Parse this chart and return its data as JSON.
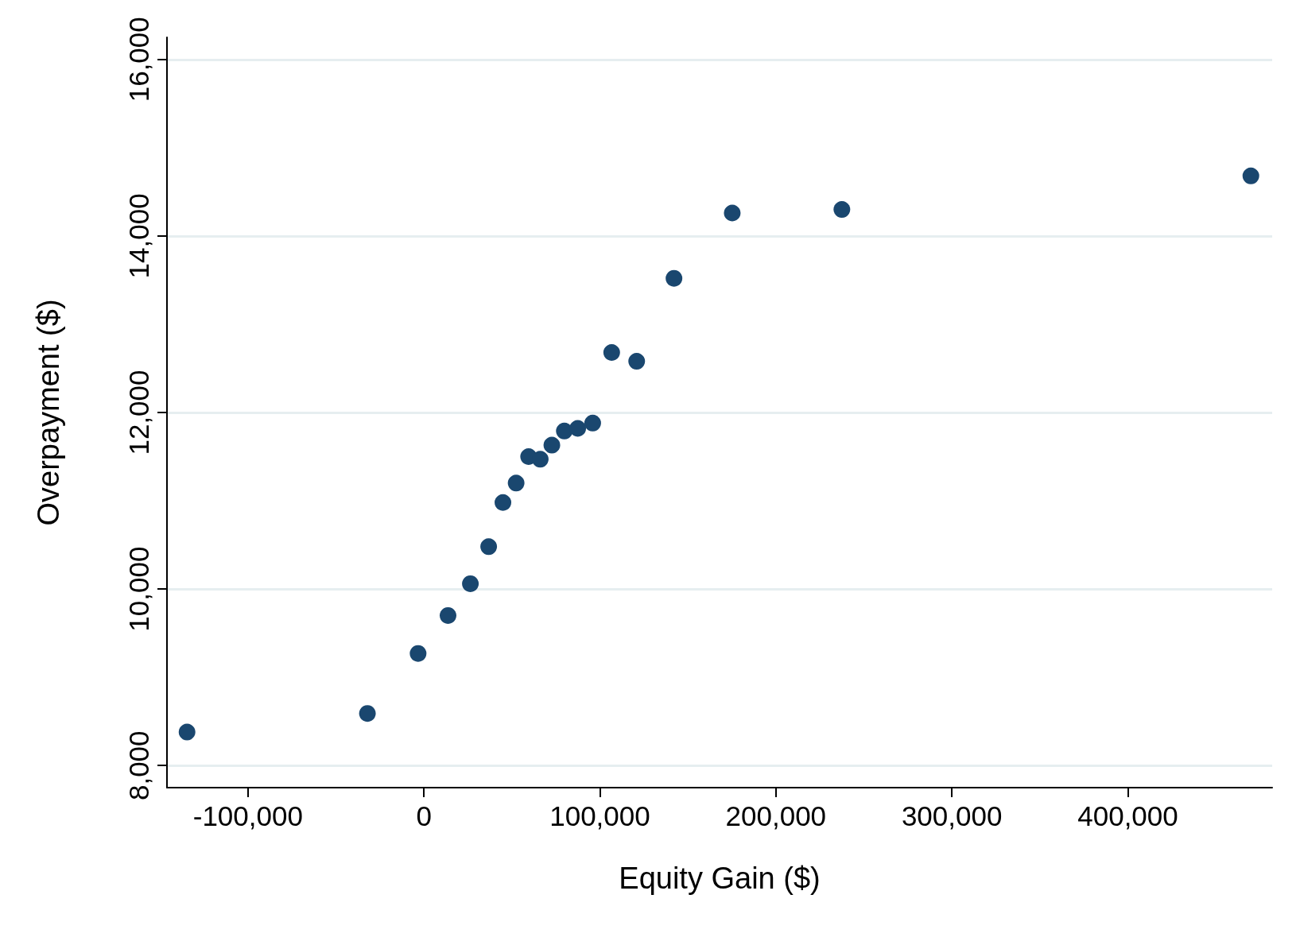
{
  "chart_data": {
    "type": "scatter",
    "xlabel": "Equity Gain ($)",
    "ylabel": "Overpayment ($)",
    "x": [
      -134600,
      -32100,
      -3300,
      13700,
      26400,
      36800,
      44900,
      52400,
      59500,
      66100,
      72700,
      79800,
      87400,
      95900,
      106700,
      120900,
      142100,
      175200,
      237500,
      469900
    ],
    "series": [
      {
        "color": "#1a476f",
        "values": [
          8380,
          8590,
          9270,
          9700,
          10060,
          10480,
          10980,
          11200,
          11500,
          11470,
          11630,
          11790,
          11820,
          11880,
          12680,
          12580,
          13520,
          14260,
          14300,
          14680
        ]
      }
    ],
    "xlim": [
      -146000,
      482000
    ],
    "ylim": [
      7750,
      16250
    ],
    "xticks": [
      {
        "value": -100000,
        "label": "-100,000"
      },
      0,
      {
        "value": 100000,
        "label": "100,000"
      },
      {
        "value": 200000,
        "label": "200,000"
      },
      {
        "value": 300000,
        "label": "300,000"
      },
      {
        "value": 400000,
        "label": "400,000"
      }
    ],
    "yticks": [
      {
        "value": 8000,
        "label": "8,000"
      },
      {
        "value": 10000,
        "label": "10,000"
      },
      {
        "value": 12000,
        "label": "12,000"
      },
      {
        "value": 14000,
        "label": "14,000"
      },
      {
        "value": 16000,
        "label": "16,000"
      }
    ],
    "grid": "y",
    "marker": "circle"
  }
}
